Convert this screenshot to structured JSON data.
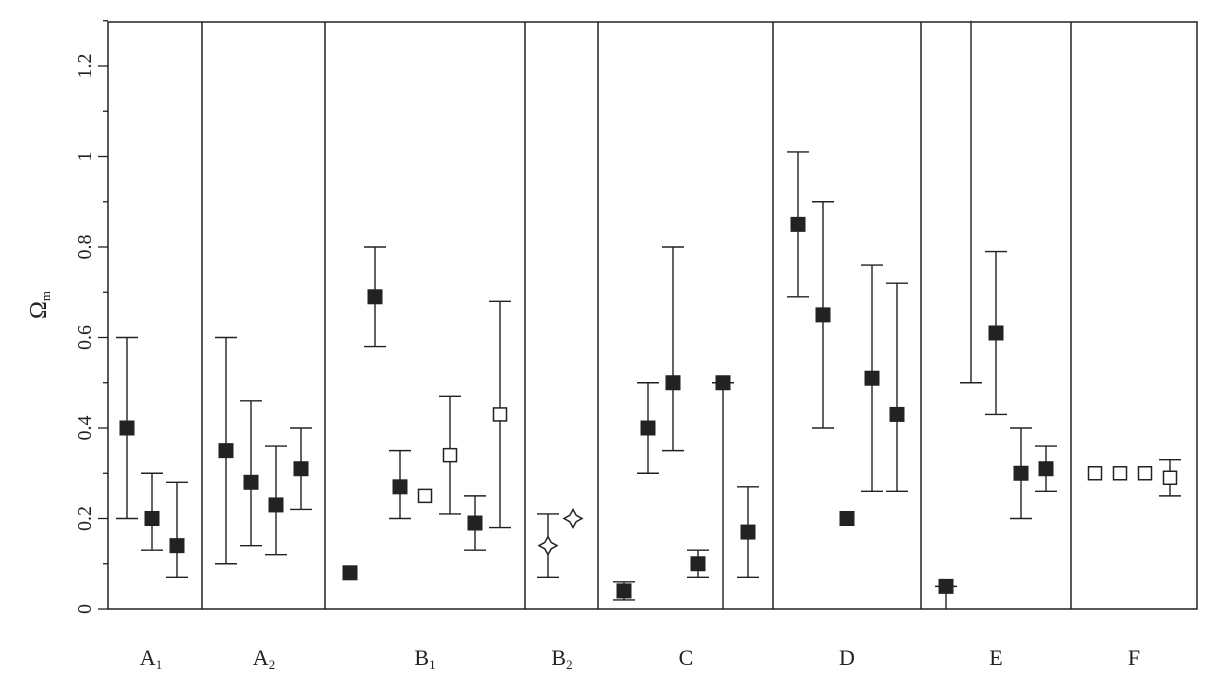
{
  "chart_data": {
    "type": "scatter",
    "title": "",
    "xlabel": "",
    "ylabel": "Ω",
    "ylabel_subscript": "m",
    "ylim": [
      0,
      1.3
    ],
    "yticks": [
      "0",
      "0.2",
      "0.4",
      "0.6",
      "0.8",
      "1",
      "1.2"
    ],
    "ytick_values": [
      0,
      0.2,
      0.4,
      0.6,
      0.8,
      1.0,
      1.2
    ],
    "grid": false,
    "legend": "none",
    "groups": [
      {
        "label": "A",
        "sub": "1"
      },
      {
        "label": "A",
        "sub": "2"
      },
      {
        "label": "B",
        "sub": "1"
      },
      {
        "label": "B",
        "sub": "2"
      },
      {
        "label": "C",
        "sub": ""
      },
      {
        "label": "D",
        "sub": ""
      },
      {
        "label": "E",
        "sub": ""
      },
      {
        "label": "F",
        "sub": ""
      }
    ],
    "points": [
      {
        "group": 0,
        "y": 0.4,
        "low": 0.2,
        "high": 0.6,
        "marker": "filled-square"
      },
      {
        "group": 0,
        "y": 0.2,
        "low": 0.13,
        "high": 0.3,
        "marker": "filled-square"
      },
      {
        "group": 0,
        "y": 0.14,
        "low": 0.07,
        "high": 0.28,
        "marker": "filled-square"
      },
      {
        "group": 1,
        "y": 0.35,
        "low": 0.1,
        "high": 0.6,
        "marker": "filled-square"
      },
      {
        "group": 1,
        "y": 0.28,
        "low": 0.14,
        "high": 0.46,
        "marker": "filled-square"
      },
      {
        "group": 1,
        "y": 0.23,
        "low": 0.12,
        "high": 0.36,
        "marker": "filled-square"
      },
      {
        "group": 1,
        "y": 0.31,
        "low": 0.22,
        "high": 0.4,
        "marker": "filled-square"
      },
      {
        "group": 2,
        "y": 0.08,
        "low": null,
        "high": null,
        "marker": "filled-square"
      },
      {
        "group": 2,
        "y": 0.69,
        "low": 0.58,
        "high": 0.8,
        "marker": "filled-square"
      },
      {
        "group": 2,
        "y": 0.27,
        "low": 0.2,
        "high": 0.35,
        "marker": "filled-square"
      },
      {
        "group": 2,
        "y": 0.25,
        "low": null,
        "high": null,
        "marker": "open-square"
      },
      {
        "group": 2,
        "y": 0.34,
        "low": 0.21,
        "high": 0.47,
        "marker": "open-square"
      },
      {
        "group": 2,
        "y": 0.19,
        "low": 0.13,
        "high": 0.25,
        "marker": "filled-square"
      },
      {
        "group": 2,
        "y": 0.43,
        "low": 0.18,
        "high": 0.68,
        "marker": "open-square"
      },
      {
        "group": 3,
        "y": 0.14,
        "low": 0.07,
        "high": 0.21,
        "marker": "star"
      },
      {
        "group": 3,
        "y": 0.2,
        "low": null,
        "high": null,
        "marker": "star"
      },
      {
        "group": 4,
        "y": 0.04,
        "low": 0.02,
        "high": 0.06,
        "marker": "filled-square"
      },
      {
        "group": 4,
        "y": 0.4,
        "low": 0.3,
        "high": 0.5,
        "marker": "filled-square"
      },
      {
        "group": 4,
        "y": 0.5,
        "low": 0.35,
        "high": 0.8,
        "marker": "filled-square"
      },
      {
        "group": 4,
        "y": 0.1,
        "low": 0.07,
        "high": 0.13,
        "marker": "filled-square"
      },
      {
        "group": 4,
        "y": 0.5,
        "low": 0.0,
        "high": 0.5,
        "marker": "filled-square"
      },
      {
        "group": 4,
        "y": 0.17,
        "low": 0.07,
        "high": 0.27,
        "marker": "filled-square"
      },
      {
        "group": 5,
        "y": 0.85,
        "low": 0.69,
        "high": 1.01,
        "marker": "filled-square"
      },
      {
        "group": 5,
        "y": 0.65,
        "low": 0.4,
        "high": 0.9,
        "marker": "filled-square"
      },
      {
        "group": 5,
        "y": 0.2,
        "low": null,
        "high": null,
        "marker": "filled-square"
      },
      {
        "group": 5,
        "y": 0.51,
        "low": 0.26,
        "high": 0.76,
        "marker": "filled-square"
      },
      {
        "group": 5,
        "y": 0.43,
        "low": 0.26,
        "high": 0.72,
        "marker": "filled-square"
      },
      {
        "group": 6,
        "y": 0.05,
        "low": 0.0,
        "high": 0.05,
        "marker": "filled-square"
      },
      {
        "group": 6,
        "y": 0.5,
        "low": 0.5,
        "high": 1.3,
        "marker": "none"
      },
      {
        "group": 6,
        "y": 0.61,
        "low": 0.43,
        "high": 0.79,
        "marker": "filled-square"
      },
      {
        "group": 6,
        "y": 0.3,
        "low": 0.2,
        "high": 0.4,
        "marker": "filled-square"
      },
      {
        "group": 6,
        "y": 0.31,
        "low": 0.26,
        "high": 0.36,
        "marker": "filled-square"
      },
      {
        "group": 7,
        "y": 0.3,
        "low": null,
        "high": null,
        "marker": "open-square"
      },
      {
        "group": 7,
        "y": 0.3,
        "low": null,
        "high": null,
        "marker": "open-square"
      },
      {
        "group": 7,
        "y": 0.3,
        "low": null,
        "high": null,
        "marker": "open-square"
      },
      {
        "group": 7,
        "y": 0.29,
        "low": 0.25,
        "high": 0.33,
        "marker": "open-square"
      }
    ]
  }
}
